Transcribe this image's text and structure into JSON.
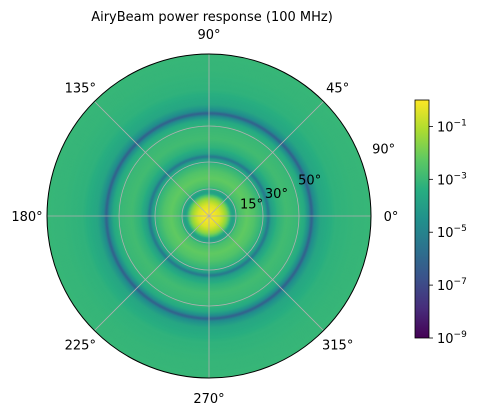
{
  "chart_data": {
    "type": "heatmap",
    "title": "AiryBeam power response (100 MHz)",
    "projection": "polar",
    "theta_ticks_deg": [
      0,
      45,
      90,
      135,
      180,
      225,
      270,
      315
    ],
    "theta_tick_labels": [
      "0°",
      "45°",
      "90°",
      "135°",
      "180°",
      "225°",
      "270°",
      "315°"
    ],
    "r_ticks_deg": [
      15,
      30,
      50,
      90
    ],
    "r_tick_labels": [
      "15°",
      "30°",
      "50°",
      "90°"
    ],
    "r_range_deg": [
      0,
      90
    ],
    "grid": true,
    "colormap": "viridis",
    "color_scale": "log",
    "colorbar": {
      "placement": "right",
      "range": [
        1e-09,
        1
      ],
      "ticks": [
        1e-09,
        1e-07,
        1e-05,
        0.001,
        0.1
      ],
      "tick_labels": [
        "10",
        "10",
        "10",
        "10",
        "10"
      ],
      "tick_exponents": [
        "−9",
        "−7",
        "−5",
        "−3",
        "−1"
      ]
    },
    "radial_profile": [
      {
        "r": 0,
        "value": 1.0
      },
      {
        "r": 3,
        "value": 0.75
      },
      {
        "r": 6,
        "value": 0.35
      },
      {
        "r": 8,
        "value": 0.1
      },
      {
        "r": 10,
        "value": 0.02
      },
      {
        "r": 11.5,
        "value": 0.002
      },
      {
        "r": 12.5,
        "value": 0.0002
      },
      {
        "r": 13.5,
        "value": 0.0001
      },
      {
        "r": 15,
        "value": 0.0005
      },
      {
        "r": 16.5,
        "value": 0.002
      },
      {
        "r": 21,
        "value": 0.006
      },
      {
        "r": 25,
        "value": 0.003
      },
      {
        "r": 29,
        "value": 0.0008
      },
      {
        "r": 31.5,
        "value": 0.0001
      },
      {
        "r": 33,
        "value": 3e-06
      },
      {
        "r": 34.5,
        "value": 0.0001
      },
      {
        "r": 38,
        "value": 0.0006
      },
      {
        "r": 43,
        "value": 0.0015
      },
      {
        "r": 49,
        "value": 0.001
      },
      {
        "r": 53,
        "value": 0.0003
      },
      {
        "r": 55.5,
        "value": 2e-05
      },
      {
        "r": 57,
        "value": 5e-07
      },
      {
        "r": 58.5,
        "value": 2e-05
      },
      {
        "r": 62,
        "value": 0.0002
      },
      {
        "r": 70,
        "value": 0.0006
      },
      {
        "r": 80,
        "value": 0.0008
      },
      {
        "r": 90,
        "value": 0.0009
      }
    ]
  }
}
